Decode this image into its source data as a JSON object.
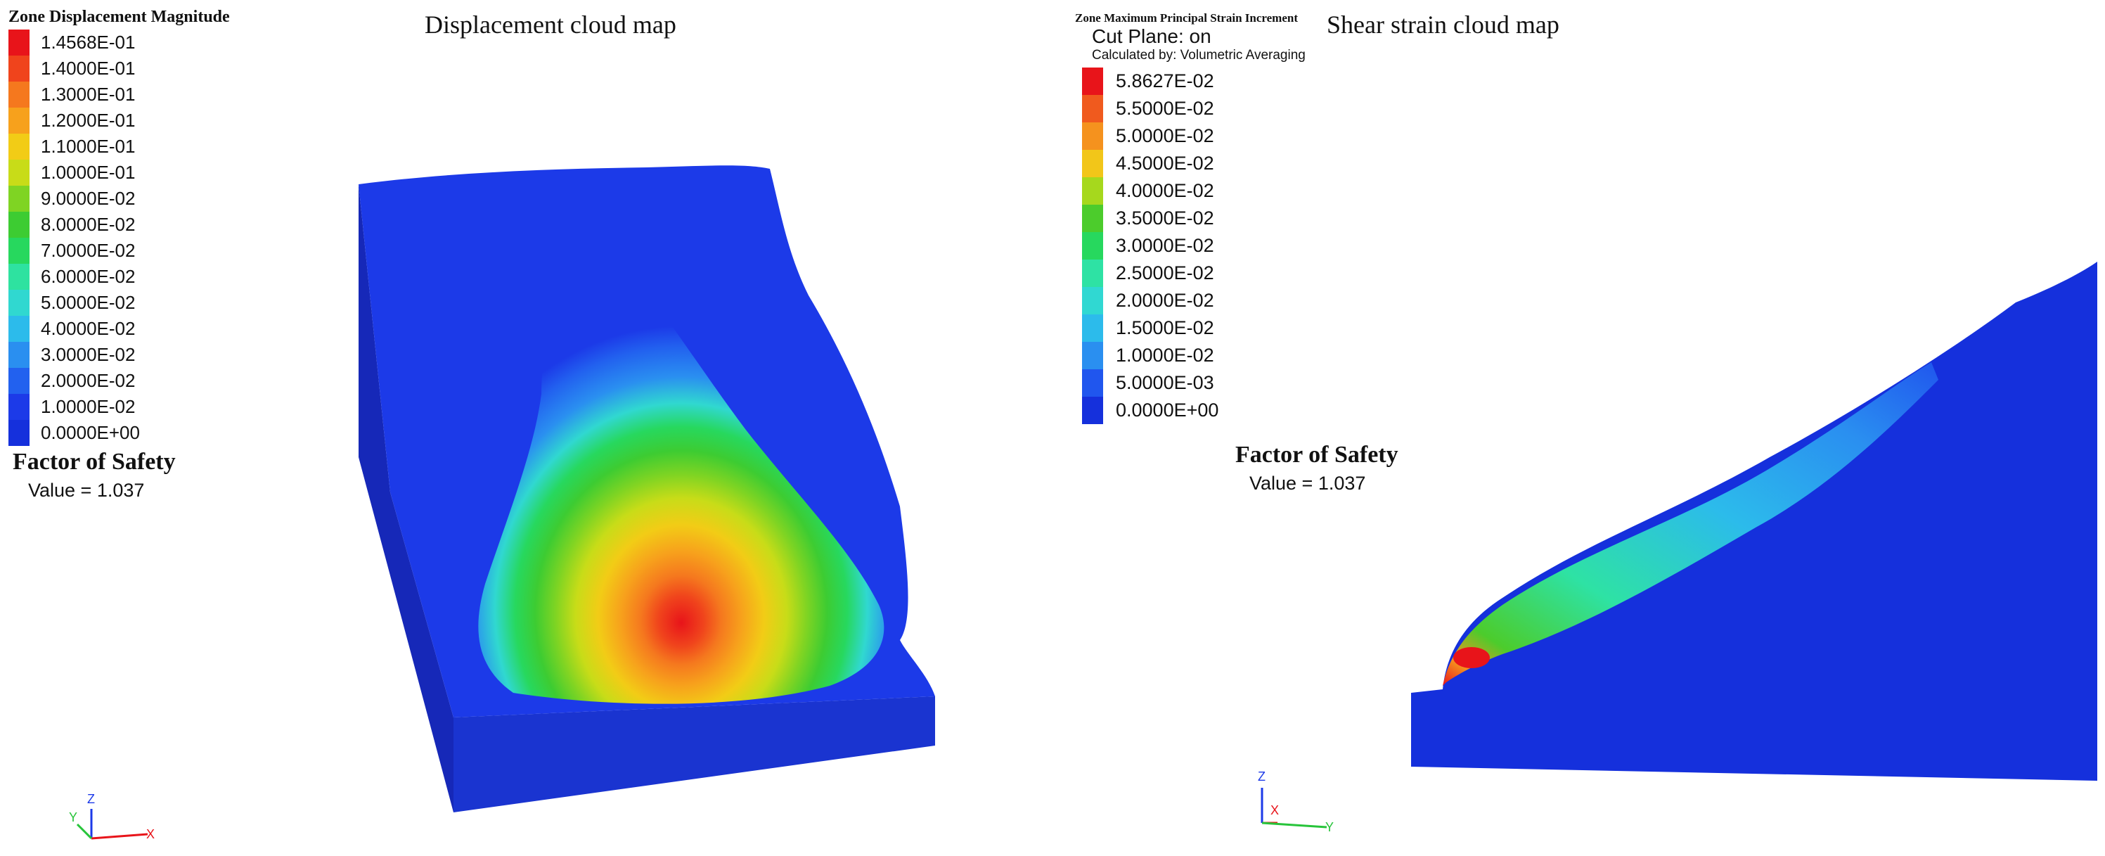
{
  "left_panel": {
    "caption": "Displacement cloud map",
    "legend": {
      "title": "Zone Displacement Magnitude",
      "entries": [
        {
          "label": "1.4568E-01",
          "color": "#e8141a"
        },
        {
          "label": "1.4000E-01",
          "color": "#f0441c"
        },
        {
          "label": "1.3000E-01",
          "color": "#f5781e"
        },
        {
          "label": "1.2000E-01",
          "color": "#f7a11c"
        },
        {
          "label": "1.1000E-01",
          "color": "#f2cc16"
        },
        {
          "label": "1.0000E-01",
          "color": "#c8dc18"
        },
        {
          "label": "9.0000E-02",
          "color": "#7fd423"
        },
        {
          "label": "8.0000E-02",
          "color": "#3dcc32"
        },
        {
          "label": "7.0000E-02",
          "color": "#27d85e"
        },
        {
          "label": "6.0000E-02",
          "color": "#2ee2a0"
        },
        {
          "label": "5.0000E-02",
          "color": "#30d8d0"
        },
        {
          "label": "4.0000E-02",
          "color": "#2cbbeb"
        },
        {
          "label": "3.0000E-02",
          "color": "#2a8ff0"
        },
        {
          "label": "2.0000E-02",
          "color": "#2261ef"
        },
        {
          "label": "1.0000E-02",
          "color": "#1c3ae8"
        },
        {
          "label": "0.0000E+00",
          "color": "#1530dc"
        }
      ]
    },
    "factor_of_safety": {
      "title": "Factor of Safety",
      "value_text": "Value = 1.037"
    },
    "axes": {
      "z": "Z",
      "y": "Y",
      "x": "X"
    }
  },
  "right_panel": {
    "caption": "Shear strain cloud map",
    "legend": {
      "title": "Zone Maximum Principal Strain Increment",
      "cut_plane": "Cut Plane: on",
      "calculated_by": "Calculated by: Volumetric Averaging",
      "entries": [
        {
          "label": "5.8627E-02",
          "color": "#e8141a"
        },
        {
          "label": "5.5000E-02",
          "color": "#f05a1e"
        },
        {
          "label": "5.0000E-02",
          "color": "#f5921e"
        },
        {
          "label": "4.5000E-02",
          "color": "#f2c619"
        },
        {
          "label": "4.0000E-02",
          "color": "#a6d81d"
        },
        {
          "label": "3.5000E-02",
          "color": "#4ccc2c"
        },
        {
          "label": "3.0000E-02",
          "color": "#27d85e"
        },
        {
          "label": "2.5000E-02",
          "color": "#2ee2a4"
        },
        {
          "label": "2.0000E-02",
          "color": "#30d8d2"
        },
        {
          "label": "1.5000E-02",
          "color": "#2cbbeb"
        },
        {
          "label": "1.0000E-02",
          "color": "#2a8ff0"
        },
        {
          "label": "5.0000E-03",
          "color": "#2056ee"
        },
        {
          "label": "0.0000E+00",
          "color": "#1530dc"
        }
      ]
    },
    "factor_of_safety": {
      "title": "Factor of Safety",
      "value_text": "Value = 1.037"
    },
    "axes": {
      "z": "Z",
      "x": "X",
      "y": "Y"
    }
  }
}
